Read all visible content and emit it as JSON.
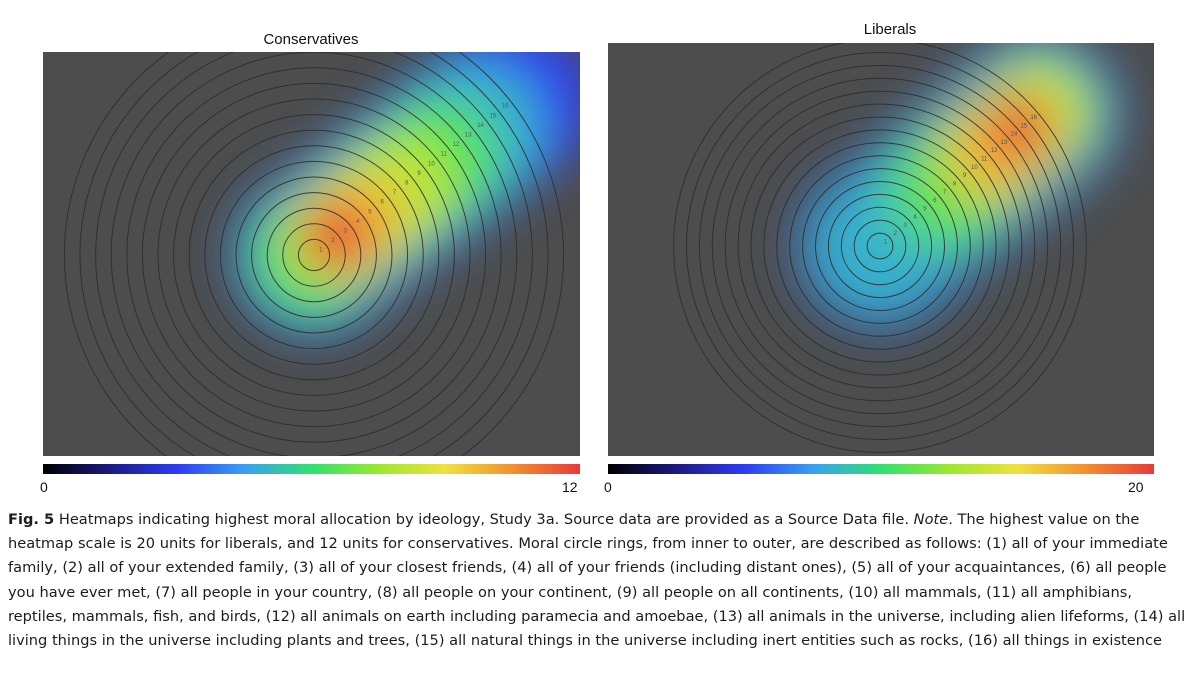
{
  "chart_data": [
    {
      "type": "heatmap",
      "title": "Conservatives",
      "xlabel": "",
      "ylabel": "",
      "colorbar": {
        "min": 0,
        "max": 12,
        "min_label": "0",
        "max_label": "12",
        "colormap": [
          "#000000",
          "#1a1a80",
          "#2f3cf0",
          "#3aa0f0",
          "#30e070",
          "#9be830",
          "#f0e040",
          "#f09030",
          "#e83a3a"
        ]
      },
      "rings": {
        "count": 16,
        "labels": [
          "1",
          "2",
          "3",
          "4",
          "5",
          "6",
          "7",
          "8",
          "9",
          "10",
          "11",
          "12",
          "13",
          "14",
          "15",
          "16"
        ]
      },
      "hotspots": [
        {
          "ring": 0,
          "value": 7
        },
        {
          "ring": 2,
          "value": 12
        },
        {
          "ring": 4,
          "value": 10
        },
        {
          "ring": 7,
          "value": 8.5
        },
        {
          "ring": 10,
          "value": 7.5
        },
        {
          "ring": 13,
          "value": 6
        },
        {
          "ring": 16,
          "value": 3.5
        }
      ],
      "grid": false
    },
    {
      "type": "heatmap",
      "title": "Liberals",
      "xlabel": "",
      "ylabel": "",
      "colorbar": {
        "min": 0,
        "max": 20,
        "min_label": "0",
        "max_label": "20",
        "colormap": [
          "#000000",
          "#1a1a80",
          "#2f3cf0",
          "#3aa0f0",
          "#30e070",
          "#9be830",
          "#f0e040",
          "#f09030",
          "#e83a3a"
        ]
      },
      "rings": {
        "count": 16,
        "labels": [
          "1",
          "2",
          "3",
          "4",
          "5",
          "6",
          "7",
          "8",
          "9",
          "10",
          "11",
          "12",
          "13",
          "14",
          "15",
          "16"
        ]
      },
      "hotspots": [
        {
          "ring": 0,
          "value": 8
        },
        {
          "ring": 3,
          "value": 9
        },
        {
          "ring": 7,
          "value": 13
        },
        {
          "ring": 11,
          "value": 16
        },
        {
          "ring": 14,
          "value": 20
        },
        {
          "ring": 16,
          "value": 14
        }
      ],
      "grid": false
    }
  ],
  "caption": {
    "fig_label": "Fig. 5",
    "text_before_note": " Heatmaps indicating highest moral allocation by ideology, Study 3a. Source data are provided as a Source Data file. ",
    "note_label": "Note",
    "text_after_note": ". The highest value on the heatmap scale is 20 units for liberals, and 12 units for conservatives. Moral circle rings, from inner to outer, are described as follows: (1) all of your immediate family, (2) all of your extended family, (3) all of your closest friends, (4) all of your friends (including distant ones), (5) all of your acquaintances, (6) all people you have ever met, (7) all people in your country, (8) all people on your continent, (9) all people on all continents, (10) all mammals, (11) all amphibians, reptiles, mammals, fish, and birds, (12) all animals on earth including paramecia and amoebae, (13) all animals in the universe, including alien lifeforms, (14) all living things in the universe including plants and trees, (15) all natural things in the universe including inert entities such as rocks, (16) all things in existence"
  }
}
